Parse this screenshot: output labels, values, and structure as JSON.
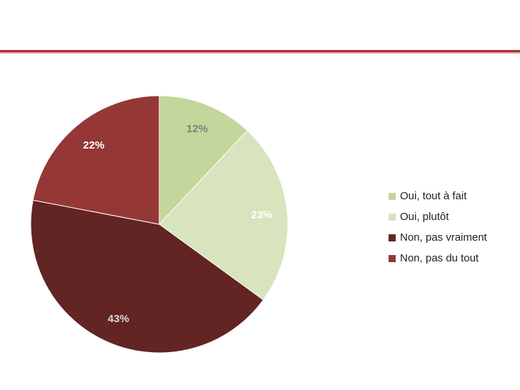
{
  "chart_data": {
    "type": "pie",
    "title": "",
    "categories": [
      "Oui, tout à fait",
      "Oui, plutôt",
      "Non, pas vraiment",
      "Non, pas du tout"
    ],
    "values": [
      12,
      23,
      43,
      22
    ],
    "labels": [
      "12%",
      "23%",
      "43%",
      "22%"
    ],
    "colors": [
      "#c3d69b",
      "#d7e4bd",
      "#632523",
      "#953735"
    ],
    "label_colors": [
      "#7f7f7f",
      "#ffffff",
      "#d9d9d9",
      "#ffffff"
    ],
    "legend_position": "right"
  }
}
